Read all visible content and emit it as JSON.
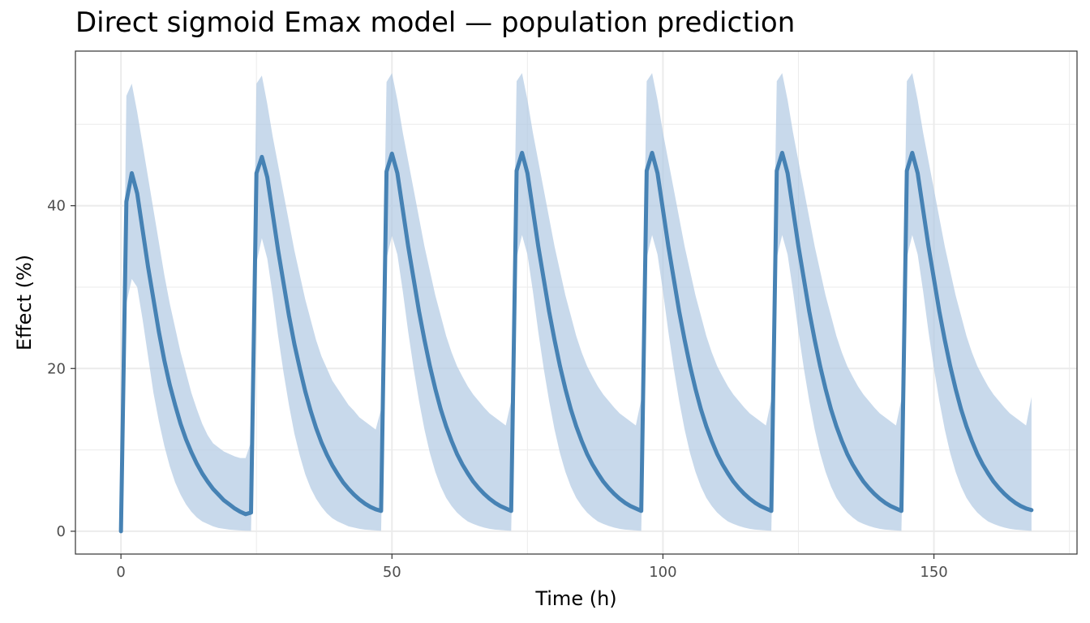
{
  "chart_data": {
    "type": "line",
    "title": "Direct sigmoid Emax model — population prediction",
    "xlabel": "Time (h)",
    "ylabel": "Effect (%)",
    "xlim": [
      -8.4,
      176.4
    ],
    "ylim": [
      -2.8,
      59.0
    ],
    "x_ticks": [
      0,
      50,
      100,
      150
    ],
    "y_ticks": [
      0,
      20,
      40
    ],
    "x_tick_labels": [
      "0",
      "50",
      "100",
      "150"
    ],
    "y_tick_labels": [
      "0",
      "20",
      "40"
    ],
    "grid": true,
    "colors": {
      "line": "#4682B4",
      "band": "#B0C9E2",
      "grid": "#EBEBEB",
      "border": "#333333"
    },
    "series": [
      {
        "x": [
          0,
          1,
          2,
          3,
          4,
          5,
          6,
          7,
          8,
          9,
          10,
          11,
          12,
          13,
          14,
          15,
          16,
          17,
          18,
          19,
          20,
          21,
          22,
          23,
          24,
          25,
          26,
          27,
          28,
          29,
          30,
          31,
          32,
          33,
          34,
          35,
          36,
          37,
          38,
          39,
          40,
          41,
          42,
          43,
          44,
          45,
          46,
          47,
          48,
          49,
          50,
          51,
          52,
          53,
          54,
          55,
          56,
          57,
          58,
          59,
          60,
          61,
          62,
          63,
          64,
          65,
          66,
          67,
          68,
          69,
          70,
          71,
          72,
          73,
          74,
          75,
          76,
          77,
          78,
          79,
          80,
          81,
          82,
          83,
          84,
          85,
          86,
          87,
          88,
          89,
          90,
          91,
          92,
          93,
          94,
          95,
          96,
          97,
          98,
          99,
          100,
          101,
          102,
          103,
          104,
          105,
          106,
          107,
          108,
          109,
          110,
          111,
          112,
          113,
          114,
          115,
          116,
          117,
          118,
          119,
          120,
          121,
          122,
          123,
          124,
          125,
          126,
          127,
          128,
          129,
          130,
          131,
          132,
          133,
          134,
          135,
          136,
          137,
          138,
          139,
          140,
          141,
          142,
          143,
          144,
          145,
          146,
          147,
          148,
          149,
          150,
          151,
          152,
          153,
          154,
          155,
          156,
          157,
          158,
          159,
          160,
          161,
          162,
          163,
          164,
          165,
          166,
          167,
          168
        ],
        "median": [
          0,
          40.5,
          44.0,
          41.5,
          37.0,
          32.5,
          28.5,
          24.5,
          21.0,
          18.0,
          15.5,
          13.2,
          11.3,
          9.7,
          8.3,
          7.1,
          6.1,
          5.2,
          4.5,
          3.8,
          3.3,
          2.8,
          2.4,
          2.1,
          2.3,
          44.0,
          46.0,
          43.5,
          39.0,
          34.5,
          30.5,
          26.5,
          23.0,
          20.0,
          17.2,
          14.8,
          12.7,
          10.9,
          9.4,
          8.1,
          7.0,
          6.0,
          5.2,
          4.5,
          3.9,
          3.4,
          3.0,
          2.7,
          2.5,
          44.2,
          46.4,
          44.0,
          39.5,
          35.0,
          31.0,
          27.0,
          23.5,
          20.3,
          17.5,
          15.0,
          12.9,
          11.1,
          9.5,
          8.2,
          7.1,
          6.1,
          5.3,
          4.6,
          4.0,
          3.5,
          3.1,
          2.8,
          2.5,
          44.3,
          46.5,
          44.0,
          39.5,
          35.0,
          31.0,
          27.0,
          23.5,
          20.3,
          17.5,
          15.0,
          12.9,
          11.1,
          9.5,
          8.2,
          7.1,
          6.1,
          5.3,
          4.6,
          4.0,
          3.5,
          3.1,
          2.8,
          2.5,
          44.3,
          46.5,
          44.0,
          39.5,
          35.0,
          31.0,
          27.0,
          23.5,
          20.3,
          17.5,
          15.0,
          12.9,
          11.1,
          9.5,
          8.2,
          7.1,
          6.1,
          5.3,
          4.6,
          4.0,
          3.5,
          3.1,
          2.8,
          2.5,
          44.3,
          46.5,
          44.0,
          39.5,
          35.0,
          31.0,
          27.0,
          23.5,
          20.3,
          17.5,
          15.0,
          12.9,
          11.1,
          9.5,
          8.2,
          7.1,
          6.1,
          5.3,
          4.6,
          4.0,
          3.5,
          3.1,
          2.8,
          2.5,
          44.3,
          46.5,
          44.0,
          39.5,
          35.0,
          31.0,
          27.0,
          23.5,
          20.3,
          17.5,
          15.0,
          12.9,
          11.1,
          9.5,
          8.2,
          7.1,
          6.1,
          5.3,
          4.6,
          4.0,
          3.5,
          3.1,
          2.8,
          2.6
        ],
        "lower": [
          0,
          28.0,
          31.0,
          30.0,
          26.0,
          21.5,
          17.0,
          13.5,
          10.5,
          8.0,
          6.0,
          4.5,
          3.3,
          2.4,
          1.7,
          1.2,
          0.9,
          0.6,
          0.4,
          0.3,
          0.2,
          0.15,
          0.1,
          0.07,
          0.05,
          33.0,
          36.0,
          33.5,
          29.0,
          24.0,
          19.5,
          15.5,
          12.0,
          9.3,
          7.0,
          5.3,
          4.0,
          3.0,
          2.2,
          1.6,
          1.2,
          0.9,
          0.6,
          0.45,
          0.3,
          0.2,
          0.15,
          0.1,
          0.05,
          33.5,
          36.3,
          34.0,
          29.5,
          24.5,
          20.0,
          16.0,
          12.5,
          9.6,
          7.3,
          5.5,
          4.1,
          3.1,
          2.3,
          1.7,
          1.2,
          0.9,
          0.65,
          0.45,
          0.3,
          0.2,
          0.15,
          0.1,
          0.05,
          33.6,
          36.4,
          34.0,
          29.5,
          24.5,
          20.0,
          16.0,
          12.5,
          9.6,
          7.3,
          5.5,
          4.1,
          3.1,
          2.3,
          1.7,
          1.2,
          0.9,
          0.65,
          0.45,
          0.3,
          0.2,
          0.15,
          0.1,
          0.05,
          33.6,
          36.4,
          34.0,
          29.5,
          24.5,
          20.0,
          16.0,
          12.5,
          9.6,
          7.3,
          5.5,
          4.1,
          3.1,
          2.3,
          1.7,
          1.2,
          0.9,
          0.65,
          0.45,
          0.3,
          0.2,
          0.15,
          0.1,
          0.05,
          33.6,
          36.4,
          34.0,
          29.5,
          24.5,
          20.0,
          16.0,
          12.5,
          9.6,
          7.3,
          5.5,
          4.1,
          3.1,
          2.3,
          1.7,
          1.2,
          0.9,
          0.65,
          0.45,
          0.3,
          0.2,
          0.15,
          0.1,
          0.05,
          33.6,
          36.4,
          34.0,
          29.5,
          24.5,
          20.0,
          16.0,
          12.5,
          9.6,
          7.3,
          5.5,
          4.1,
          3.1,
          2.3,
          1.7,
          1.2,
          0.9,
          0.65,
          0.45,
          0.3,
          0.2,
          0.15,
          0.1,
          0.05
        ],
        "upper": [
          0,
          53.5,
          55.0,
          51.5,
          47.5,
          43.5,
          39.5,
          35.5,
          31.5,
          28.0,
          25.0,
          22.0,
          19.5,
          17.0,
          15.0,
          13.2,
          11.8,
          10.8,
          10.3,
          9.8,
          9.5,
          9.2,
          9.0,
          9.0,
          11.0,
          55.0,
          56.0,
          52.5,
          48.5,
          45.0,
          41.5,
          38.0,
          34.5,
          31.5,
          28.5,
          26.0,
          23.5,
          21.5,
          20.0,
          18.5,
          17.5,
          16.5,
          15.5,
          14.8,
          14.0,
          13.5,
          13.0,
          12.5,
          15.0,
          55.2,
          56.3,
          53.0,
          49.0,
          45.5,
          42.0,
          38.5,
          35.0,
          32.0,
          29.0,
          26.5,
          24.0,
          22.0,
          20.3,
          19.0,
          17.8,
          16.8,
          16.0,
          15.2,
          14.5,
          14.0,
          13.5,
          13.0,
          16.0,
          55.3,
          56.3,
          53.0,
          49.0,
          45.5,
          42.0,
          38.5,
          35.0,
          32.0,
          29.0,
          26.5,
          24.0,
          22.0,
          20.3,
          19.0,
          17.8,
          16.8,
          16.0,
          15.2,
          14.5,
          14.0,
          13.5,
          13.0,
          16.2,
          55.3,
          56.3,
          53.0,
          49.0,
          45.5,
          42.0,
          38.5,
          35.0,
          32.0,
          29.0,
          26.5,
          24.0,
          22.0,
          20.3,
          19.0,
          17.8,
          16.8,
          16.0,
          15.2,
          14.5,
          14.0,
          13.5,
          13.0,
          16.2,
          55.3,
          56.3,
          53.0,
          49.0,
          45.5,
          42.0,
          38.5,
          35.0,
          32.0,
          29.0,
          26.5,
          24.0,
          22.0,
          20.3,
          19.0,
          17.8,
          16.8,
          16.0,
          15.2,
          14.5,
          14.0,
          13.5,
          13.0,
          16.2,
          55.3,
          56.3,
          53.0,
          49.0,
          45.5,
          42.0,
          38.5,
          35.0,
          32.0,
          29.0,
          26.5,
          24.0,
          22.0,
          20.3,
          19.0,
          17.8,
          16.8,
          16.0,
          15.2,
          14.5,
          14.0,
          13.5,
          13.0,
          16.5
        ]
      }
    ]
  }
}
